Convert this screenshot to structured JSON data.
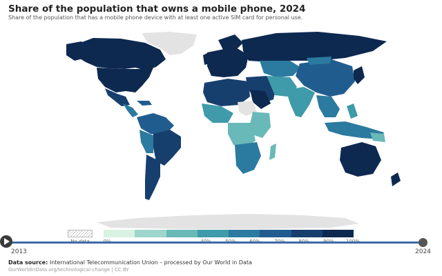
{
  "header": {
    "title": "Share of the population that owns a mobile phone, 2024",
    "subtitle": "Share of the population that has a mobile phone device with at least one active SIM card for personal use."
  },
  "legend": {
    "no_data": "No data",
    "ticks": [
      "0%",
      "40%",
      "50%",
      "60%",
      "70%",
      "80%",
      "90%",
      "100%"
    ],
    "colors": [
      "#d9f2e3",
      "#9ed6cb",
      "#68b9b7",
      "#3f9aa9",
      "#2b7a9f",
      "#215c8f",
      "#173f6e",
      "#0d2950"
    ]
  },
  "timeline": {
    "start_year": "2013",
    "end_year": "2024"
  },
  "footer": {
    "source_label": "Data source:",
    "source_text": "International Telecommunication Union – processed by Our World in Data",
    "license": "OurWorldInData.org/technological-change | CC BY"
  },
  "map_colors": {
    "very_high": "#0d2950",
    "high": "#173f6e",
    "mid_high": "#215c8f",
    "mid": "#2b7a9f",
    "mid_low": "#3f9aa9",
    "low": "#68b9b7",
    "no_data": "#e3e3e3"
  }
}
